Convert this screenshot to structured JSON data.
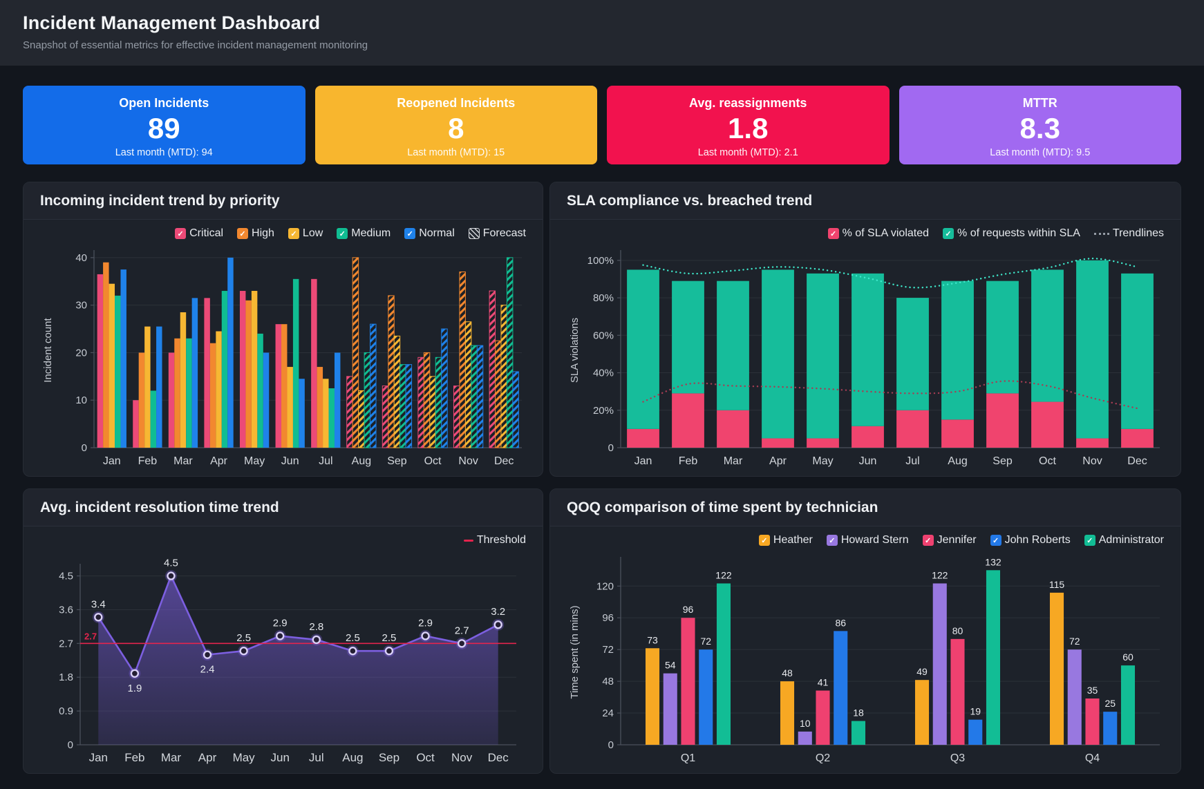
{
  "header": {
    "title": "Incident Management Dashboard",
    "subtitle": "Snapshot of essential metrics for effective incident management monitoring"
  },
  "kpis": [
    {
      "label": "Open Incidents",
      "value": "89",
      "footer": "Last month (MTD): 94",
      "color": "#136ce9"
    },
    {
      "label": "Reopened Incidents",
      "value": "8",
      "footer": "Last month (MTD): 15",
      "color": "#f8b62e"
    },
    {
      "label": "Avg. reassignments",
      "value": "1.8",
      "footer": "Last month (MTD): 2.1",
      "color": "#f2124e"
    },
    {
      "label": "MTTR",
      "value": "8.3",
      "footer": "Last month (MTD): 9.5",
      "color": "#a169f1"
    }
  ],
  "chart_data": [
    {
      "type": "bar",
      "title": "Incoming incident trend by priority",
      "ylabel": "Incident count",
      "categories": [
        "Jan",
        "Feb",
        "Mar",
        "Apr",
        "May",
        "Jun",
        "Jul",
        "Aug",
        "Sep",
        "Oct",
        "Nov",
        "Dec"
      ],
      "yticks": [
        {
          "v": 0,
          "label": "0"
        },
        {
          "v": 10,
          "label": "10"
        },
        {
          "v": 20,
          "label": "20"
        },
        {
          "v": 30,
          "label": "30"
        },
        {
          "v": 40,
          "label": "40"
        }
      ],
      "ymax": 41,
      "grid": true,
      "legend_position": "top-right",
      "forecast_from": "Aug",
      "series": [
        {
          "name": "Critical",
          "color": "#ec4a77",
          "values": [
            36.5,
            10,
            20,
            31.5,
            33,
            26,
            35.5,
            15,
            13,
            19,
            13,
            33
          ]
        },
        {
          "name": "High",
          "color": "#f2882f",
          "values": [
            39,
            20,
            23,
            22,
            31,
            26,
            17,
            40,
            32,
            20,
            37,
            22.5
          ]
        },
        {
          "name": "Low",
          "color": "#f7b733",
          "values": [
            34.5,
            25.5,
            28.5,
            24.5,
            33,
            17,
            14.5,
            12,
            23.5,
            15,
            26.5,
            30
          ]
        },
        {
          "name": "Medium",
          "color": "#10bd92",
          "values": [
            32,
            12,
            23,
            33,
            24,
            35.5,
            12.5,
            20,
            17.5,
            19,
            21.5,
            40
          ]
        },
        {
          "name": "Normal",
          "color": "#1f82ea",
          "values": [
            37.5,
            25.5,
            31.5,
            40,
            20,
            14.5,
            20,
            26,
            17.5,
            25,
            21.5,
            16
          ]
        }
      ],
      "legend_extra": [
        {
          "label": "Forecast",
          "icon": "hatch"
        }
      ]
    },
    {
      "type": "stacked-bar",
      "title": "SLA compliance vs. breached trend",
      "ylabel": "SLA violations",
      "categories": [
        "Jan",
        "Feb",
        "Mar",
        "Apr",
        "May",
        "Jun",
        "Jul",
        "Aug",
        "Sep",
        "Oct",
        "Nov",
        "Dec"
      ],
      "yticks": [
        {
          "v": 0,
          "label": "0"
        },
        {
          "v": 20,
          "label": "20%"
        },
        {
          "v": 40,
          "label": "40%"
        },
        {
          "v": 60,
          "label": "60%"
        },
        {
          "v": 80,
          "label": "80%"
        },
        {
          "v": 100,
          "label": "100%"
        }
      ],
      "ymax": 104,
      "grid": true,
      "legend_position": "top-right",
      "series": [
        {
          "name": "% of SLA violated",
          "color": "#f0446e",
          "values": [
            10,
            29,
            20,
            5,
            5,
            11.5,
            20,
            15,
            29,
            24.5,
            5,
            10
          ]
        },
        {
          "name": "% of requests within SLA",
          "color": "#16bd9b",
          "values": [
            85,
            60,
            69,
            90,
            88,
            81.5,
            60,
            74,
            60,
            70.5,
            95,
            83
          ]
        }
      ],
      "trendlines": [
        {
          "name": "within-SLA-trend",
          "color": "#3fe8cb",
          "values": [
            97.5,
            93,
            94.5,
            96.5,
            95,
            90.5,
            85.5,
            88,
            92.5,
            96,
            101,
            96.5
          ]
        },
        {
          "name": "violated-trend",
          "color": "#a63d54",
          "values": [
            24.5,
            34,
            33,
            32.5,
            31.5,
            30,
            29,
            30,
            35.5,
            33,
            26.5,
            21
          ]
        }
      ],
      "legend_extra": [
        {
          "label": "Trendlines",
          "icon": "dots"
        }
      ]
    },
    {
      "type": "line",
      "title": "Avg. incident resolution time trend",
      "ylabel": "",
      "categories": [
        "Jan",
        "Feb",
        "Mar",
        "Apr",
        "May",
        "Jun",
        "Jul",
        "Aug",
        "Sep",
        "Oct",
        "Nov",
        "Dec"
      ],
      "yticks": [
        {
          "v": 0,
          "label": "0"
        },
        {
          "v": 0.9,
          "label": "0.9"
        },
        {
          "v": 1.8,
          "label": "1.8"
        },
        {
          "v": 2.7,
          "label": "2.7"
        },
        {
          "v": 3.6,
          "label": "3.6"
        },
        {
          "v": 4.5,
          "label": "4.5"
        }
      ],
      "ymax": 4.75,
      "grid": true,
      "series": [
        {
          "name": "Avg. resolution time",
          "color": "#7c5fe0",
          "values": [
            3.4,
            1.9,
            4.5,
            2.4,
            2.5,
            2.9,
            2.8,
            2.5,
            2.5,
            2.9,
            2.7,
            3.2
          ]
        }
      ],
      "labels_below": [
        "Feb",
        "Apr"
      ],
      "threshold": {
        "label": "Threshold",
        "value": 2.7,
        "value_label": "2.7",
        "color": "#e3244d"
      }
    },
    {
      "type": "bar",
      "title": "QOQ comparison of time spent by technician",
      "ylabel": "Time spent (in mins)",
      "categories": [
        "Q1",
        "Q2",
        "Q3",
        "Q4"
      ],
      "yticks": [
        {
          "v": 0,
          "label": "0"
        },
        {
          "v": 24,
          "label": "24"
        },
        {
          "v": 48,
          "label": "48"
        },
        {
          "v": 72,
          "label": "72"
        },
        {
          "v": 96,
          "label": "96"
        },
        {
          "v": 120,
          "label": "120"
        }
      ],
      "ymax": 140,
      "grid": true,
      "bar_labels": true,
      "bar_gap": true,
      "legend_position": "top-right",
      "series": [
        {
          "name": "Heather",
          "color": "#f7a823",
          "values": [
            73,
            48,
            49,
            115
          ]
        },
        {
          "name": "Howard Stern",
          "color": "#9878e0",
          "values": [
            54,
            10,
            122,
            72
          ]
        },
        {
          "name": "Jennifer",
          "color": "#ef4170",
          "values": [
            96,
            41,
            80,
            35
          ]
        },
        {
          "name": "John Roberts",
          "color": "#2379e8",
          "values": [
            72,
            86,
            19,
            25
          ]
        },
        {
          "name": "Administrator",
          "color": "#12bd95",
          "values": [
            122,
            18,
            132,
            60
          ]
        }
      ]
    }
  ]
}
